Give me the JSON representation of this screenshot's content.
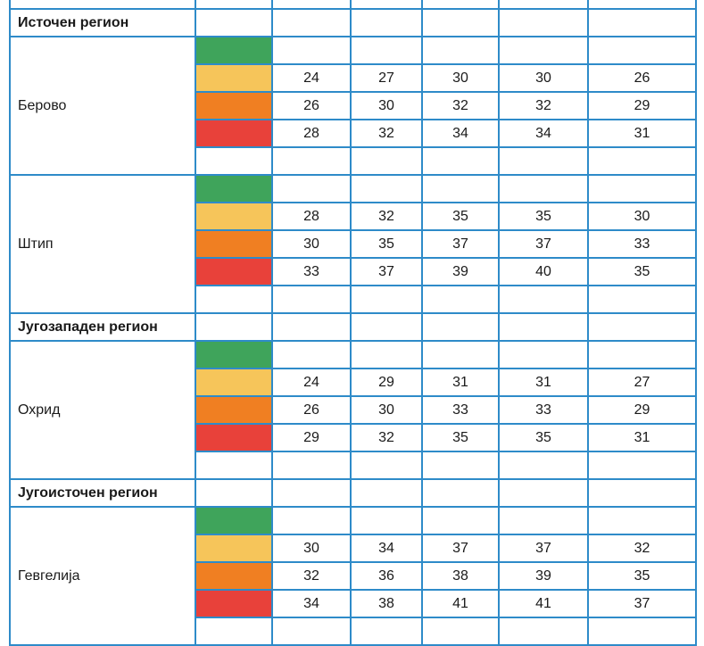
{
  "colors": {
    "border": "#2e8bc9",
    "green": "#3fa45b",
    "yellow": "#f6c55a",
    "orange": "#f07f22",
    "red": "#e8413a"
  },
  "row_levels": [
    "green",
    "yellow",
    "orange",
    "red",
    "none"
  ],
  "sections": [
    {
      "region": "Источен регион",
      "cities": [
        {
          "name": "Берово",
          "rows": [
            [],
            [
              "24",
              "27",
              "30",
              "30",
              "26"
            ],
            [
              "26",
              "30",
              "32",
              "32",
              "29"
            ],
            [
              "28",
              "32",
              "34",
              "34",
              "31"
            ],
            []
          ]
        },
        {
          "name": "Штип",
          "rows": [
            [],
            [
              "28",
              "32",
              "35",
              "35",
              "30"
            ],
            [
              "30",
              "35",
              "37",
              "37",
              "33"
            ],
            [
              "33",
              "37",
              "39",
              "40",
              "35"
            ],
            []
          ]
        }
      ]
    },
    {
      "region": "Југозападен регион",
      "cities": [
        {
          "name": "Охрид",
          "rows": [
            [],
            [
              "24",
              "29",
              "31",
              "31",
              "27"
            ],
            [
              "26",
              "30",
              "33",
              "33",
              "29"
            ],
            [
              "29",
              "32",
              "35",
              "35",
              "31"
            ],
            []
          ]
        }
      ]
    },
    {
      "region": "Југоисточен регион",
      "cities": [
        {
          "name": "Гевгелија",
          "rows": [
            [],
            [
              "30",
              "34",
              "37",
              "37",
              "32"
            ],
            [
              "32",
              "36",
              "38",
              "39",
              "35"
            ],
            [
              "34",
              "38",
              "41",
              "41",
              "37"
            ],
            []
          ]
        }
      ]
    }
  ]
}
